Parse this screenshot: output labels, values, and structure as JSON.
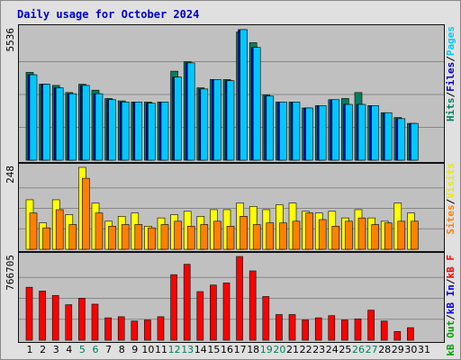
{
  "chart_data": {
    "type": "bar",
    "title": "Daily usage for October 2024",
    "categories": [
      "1",
      "2",
      "3",
      "4",
      "5",
      "6",
      "7",
      "8",
      "9",
      "10",
      "11",
      "12",
      "13",
      "14",
      "15",
      "16",
      "17",
      "18",
      "19",
      "20",
      "21",
      "22",
      "23",
      "24",
      "25",
      "26",
      "27",
      "28",
      "29",
      "30",
      "31"
    ],
    "weekend_days": [
      5,
      6,
      12,
      13,
      19,
      20,
      26,
      27
    ],
    "colors": {
      "hits": "#00805c",
      "files": "#0000c0",
      "pages": "#00c8ff",
      "visits": "#ffff00",
      "sites": "#ff8000",
      "kb_out": "#00a000",
      "kb_in": "#0000ff",
      "kb_f": "#ff0000",
      "weekday_label": "#000000",
      "weekend_label": "#00805c",
      "title": "#0000cc"
    },
    "panels": [
      {
        "id": "pages",
        "ymax_label": "5536",
        "ymax": 5536,
        "side_labels": [
          {
            "text": "Pages",
            "color": "#00c8ff"
          },
          {
            "text": "/",
            "color": "#000000"
          },
          {
            "text": "Files",
            "color": "#0000c0"
          },
          {
            "text": "/",
            "color": "#000000"
          },
          {
            "text": "Hits",
            "color": "#00805c"
          }
        ],
        "series": [
          {
            "name": "Hits",
            "color": "#00805c",
            "values": [
              3700,
              3200,
              3150,
              2850,
              3200,
              2950,
              2600,
              2500,
              2450,
              2450,
              2450,
              3750,
              4150,
              3050,
              3400,
              3400,
              5400,
              4950,
              2750,
              2450,
              2450,
              2200,
              2300,
              2550,
              2600,
              2850,
              2300,
              2000,
              1800,
              1550,
              0
            ]
          },
          {
            "name": "Files",
            "color": "#0000c0",
            "values": [
              3600,
              3200,
              3050,
              2800,
              3150,
              2800,
              2550,
              2450,
              2450,
              2400,
              2450,
              3500,
              4100,
              3000,
              3400,
              3350,
              5500,
              4750,
              2700,
              2450,
              2450,
              2200,
              2300,
              2550,
              2350,
              2350,
              2300,
              2000,
              1750,
              1550,
              0
            ]
          },
          {
            "name": "Pages",
            "color": "#00c8ff",
            "values": [
              3600,
              3200,
              3050,
              2800,
              3150,
              2800,
              2550,
              2450,
              2450,
              2400,
              2450,
              3500,
              4100,
              3000,
              3400,
              3350,
              5500,
              4750,
              2700,
              2450,
              2450,
              2200,
              2300,
              2550,
              2350,
              2350,
              2300,
              2000,
              1750,
              1550,
              0
            ]
          }
        ]
      },
      {
        "id": "visits",
        "ymax_label": "248",
        "ymax": 248,
        "side_labels": [
          {
            "text": "Visits",
            "color": "#e8e800"
          },
          {
            "text": "/",
            "color": "#000000"
          },
          {
            "text": "Sites",
            "color": "#ff8000"
          }
        ],
        "series": [
          {
            "name": "Visits",
            "color": "#ffff00",
            "values": [
              150,
              80,
              150,
              105,
              248,
              140,
              85,
              100,
              110,
              70,
              95,
              105,
              115,
              100,
              120,
              120,
              140,
              130,
              120,
              135,
              140,
              115,
              110,
              115,
              95,
              120,
              95,
              85,
              140,
              110,
              0
            ]
          },
          {
            "name": "Sites",
            "color": "#ff8000",
            "values": [
              110,
              65,
              120,
              75,
              215,
              110,
              70,
              75,
              75,
              65,
              75,
              85,
              70,
              75,
              85,
              70,
              100,
              75,
              80,
              80,
              85,
              110,
              90,
              70,
              85,
              95,
              75,
              80,
              85,
              85,
              0
            ]
          }
        ]
      },
      {
        "id": "kb",
        "ymax_label": "766705",
        "ymax": 766705,
        "side_labels": [
          {
            "text": "kB F",
            "color": "#ff0000"
          },
          {
            "text": "/",
            "color": "#000000"
          },
          {
            "text": "kB In",
            "color": "#0000ff"
          },
          {
            "text": "/",
            "color": "#000000"
          },
          {
            "text": "kB Out",
            "color": "#00a000"
          }
        ],
        "series": [
          {
            "name": "kB F",
            "color": "#ff0000",
            "values": [
              485000,
              450000,
              410000,
              325000,
              385000,
              330000,
              205000,
              215000,
              175000,
              185000,
              215000,
              600000,
              695000,
              445000,
              505000,
              525000,
              766705,
              635000,
              400000,
              235000,
              235000,
              185000,
              205000,
              225000,
              185000,
              195000,
              275000,
              175000,
              80000,
              115000,
              0
            ]
          }
        ]
      }
    ]
  }
}
